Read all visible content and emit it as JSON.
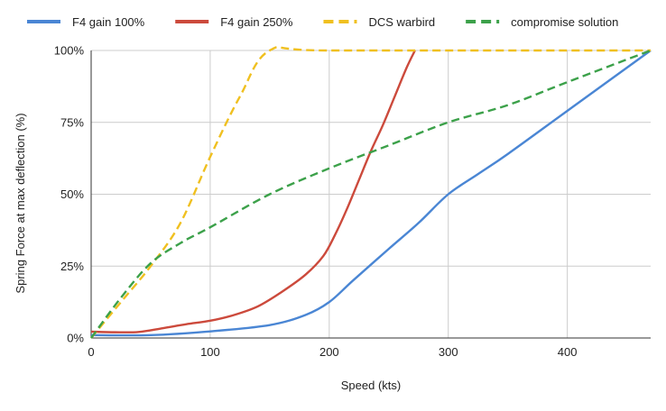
{
  "chart_data": {
    "type": "line",
    "title": "",
    "xlabel": "Speed (kts)",
    "ylabel": "Spring Force at max deflection (%)",
    "xlim": [
      0,
      470
    ],
    "ylim": [
      0,
      100
    ],
    "x_ticks": [
      {
        "value": 0,
        "label": "0"
      },
      {
        "value": 100,
        "label": "100"
      },
      {
        "value": 200,
        "label": "200"
      },
      {
        "value": 300,
        "label": "300"
      },
      {
        "value": 400,
        "label": "400"
      }
    ],
    "y_ticks": [
      {
        "value": 0,
        "label": "0%"
      },
      {
        "value": 25,
        "label": "25%"
      },
      {
        "value": 50,
        "label": "50%"
      },
      {
        "value": 75,
        "label": "75%"
      },
      {
        "value": 100,
        "label": "100%"
      }
    ],
    "grid": true,
    "legend_position": "top-left",
    "series": [
      {
        "name": "F4 gain 100%",
        "color": "#4a86d4",
        "dash": "solid",
        "points": [
          [
            0,
            1
          ],
          [
            50,
            1
          ],
          [
            100,
            2.3
          ],
          [
            150,
            4.5
          ],
          [
            180,
            8
          ],
          [
            200,
            12.5
          ],
          [
            220,
            20
          ],
          [
            250,
            31
          ],
          [
            275,
            40
          ],
          [
            300,
            50
          ],
          [
            325,
            57
          ],
          [
            350,
            64
          ],
          [
            400,
            79
          ],
          [
            470,
            100
          ]
        ]
      },
      {
        "name": "F4 gain 250%",
        "color": "#cc4a3c",
        "dash": "solid",
        "points": [
          [
            0,
            2.2
          ],
          [
            20,
            2
          ],
          [
            40,
            2.1
          ],
          [
            60,
            3.4
          ],
          [
            80,
            4.8
          ],
          [
            100,
            6
          ],
          [
            120,
            8
          ],
          [
            140,
            11
          ],
          [
            160,
            16
          ],
          [
            180,
            22
          ],
          [
            195,
            28.5
          ],
          [
            205,
            36
          ],
          [
            215,
            45
          ],
          [
            225,
            55
          ],
          [
            235,
            65
          ],
          [
            245,
            74
          ],
          [
            255,
            84
          ],
          [
            265,
            94
          ],
          [
            272,
            100
          ]
        ]
      },
      {
        "name": "DCS warbird",
        "color": "#f0c020",
        "dash": "dashed",
        "points": [
          [
            0,
            0
          ],
          [
            25,
            12.5
          ],
          [
            50,
            25
          ],
          [
            75,
            40
          ],
          [
            100,
            63
          ],
          [
            125,
            84
          ],
          [
            150,
            100
          ],
          [
            200,
            100
          ],
          [
            470,
            100
          ]
        ]
      },
      {
        "name": "compromise solution",
        "color": "#3ca14a",
        "dash": "dashed",
        "points": [
          [
            0,
            0
          ],
          [
            25,
            14
          ],
          [
            50,
            26
          ],
          [
            75,
            33
          ],
          [
            100,
            38.5
          ],
          [
            150,
            50
          ],
          [
            200,
            59
          ],
          [
            250,
            67
          ],
          [
            300,
            75
          ],
          [
            350,
            81
          ],
          [
            400,
            89
          ],
          [
            470,
            100
          ]
        ]
      }
    ]
  }
}
